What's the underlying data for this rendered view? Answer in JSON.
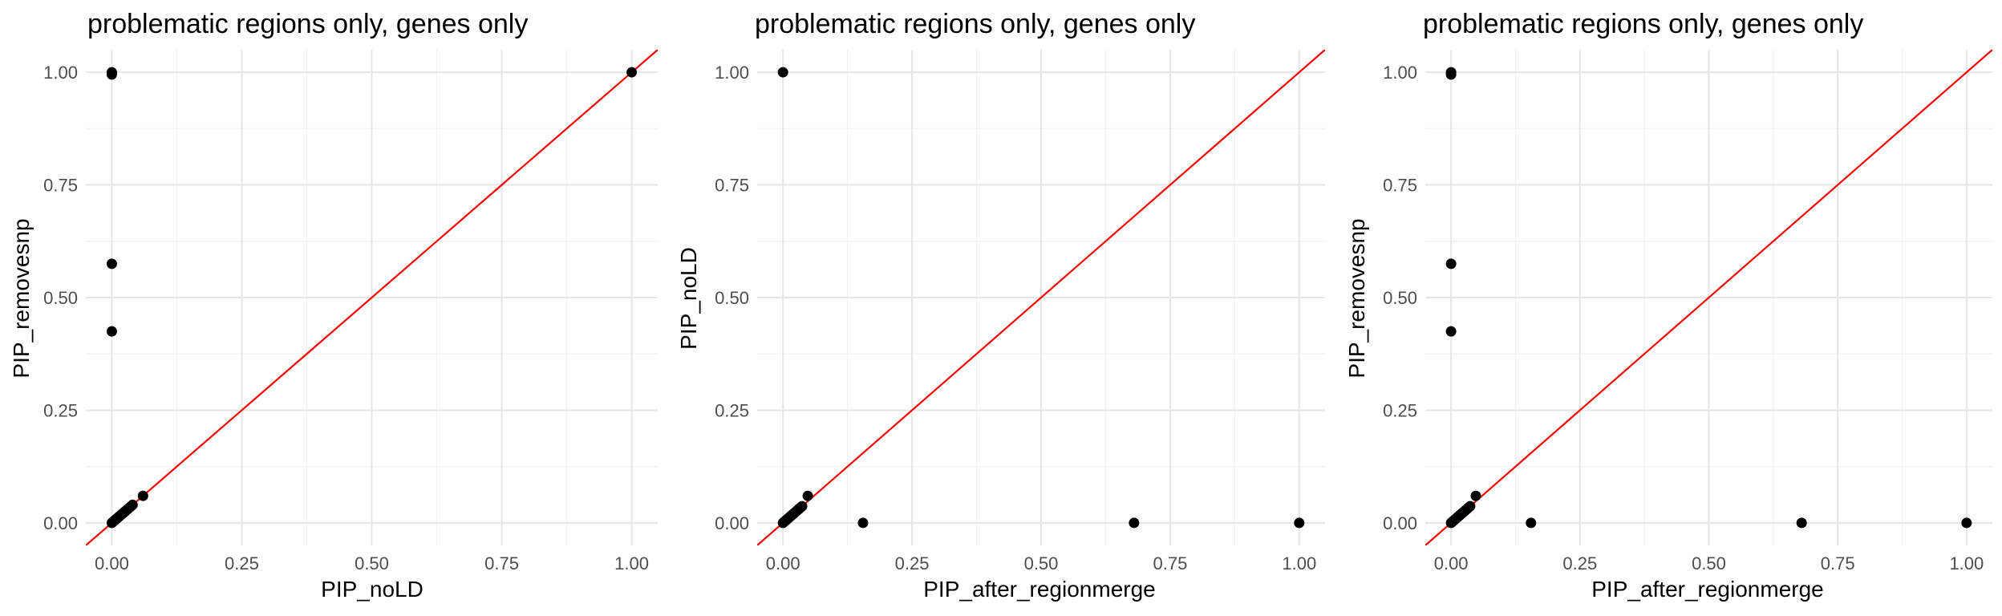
{
  "chart_data": [
    {
      "type": "scatter",
      "title": "problematic regions only, genes only",
      "xlabel": "PIP_noLD",
      "ylabel": "PIP_removesnp",
      "xlim": [
        -0.05,
        1.05
      ],
      "ylim": [
        -0.05,
        1.05
      ],
      "x_ticks": [
        "0.00",
        "0.25",
        "0.50",
        "0.75",
        "1.00"
      ],
      "y_ticks": [
        "0.00",
        "0.25",
        "0.50",
        "0.75",
        "1.00"
      ],
      "reference_line": {
        "slope": 1,
        "intercept": 0,
        "color": "#ff0000"
      },
      "grid": true,
      "points": [
        {
          "x": 0.0,
          "y": 1.0
        },
        {
          "x": 0.0,
          "y": 0.995
        },
        {
          "x": 0.0,
          "y": 0.575
        },
        {
          "x": 0.0,
          "y": 0.425
        },
        {
          "x": 0.0,
          "y": 0.0
        },
        {
          "x": 0.002,
          "y": 0.002
        },
        {
          "x": 0.004,
          "y": 0.004
        },
        {
          "x": 0.006,
          "y": 0.006
        },
        {
          "x": 0.008,
          "y": 0.008
        },
        {
          "x": 0.01,
          "y": 0.01
        },
        {
          "x": 0.012,
          "y": 0.012
        },
        {
          "x": 0.014,
          "y": 0.014
        },
        {
          "x": 0.016,
          "y": 0.016
        },
        {
          "x": 0.018,
          "y": 0.018
        },
        {
          "x": 0.02,
          "y": 0.02
        },
        {
          "x": 0.022,
          "y": 0.022
        },
        {
          "x": 0.025,
          "y": 0.025
        },
        {
          "x": 0.028,
          "y": 0.028
        },
        {
          "x": 0.031,
          "y": 0.031
        },
        {
          "x": 0.034,
          "y": 0.034
        },
        {
          "x": 0.037,
          "y": 0.037
        },
        {
          "x": 0.04,
          "y": 0.04
        },
        {
          "x": 0.06,
          "y": 0.06
        },
        {
          "x": 1.0,
          "y": 1.0
        }
      ]
    },
    {
      "type": "scatter",
      "title": "problematic regions only, genes only",
      "xlabel": "PIP_after_regionmerge",
      "ylabel": "PIP_noLD",
      "xlim": [
        -0.05,
        1.05
      ],
      "ylim": [
        -0.05,
        1.05
      ],
      "x_ticks": [
        "0.00",
        "0.25",
        "0.50",
        "0.75",
        "1.00"
      ],
      "y_ticks": [
        "0.00",
        "0.25",
        "0.50",
        "0.75",
        "1.00"
      ],
      "reference_line": {
        "slope": 1,
        "intercept": 0,
        "color": "#ff0000"
      },
      "grid": true,
      "points": [
        {
          "x": 0.0,
          "y": 1.0
        },
        {
          "x": 0.155,
          "y": 0.0
        },
        {
          "x": 0.68,
          "y": 0.0
        },
        {
          "x": 1.0,
          "y": 0.0
        },
        {
          "x": 0.0,
          "y": 0.0
        },
        {
          "x": 0.002,
          "y": 0.002
        },
        {
          "x": 0.004,
          "y": 0.004
        },
        {
          "x": 0.006,
          "y": 0.006
        },
        {
          "x": 0.008,
          "y": 0.008
        },
        {
          "x": 0.01,
          "y": 0.01
        },
        {
          "x": 0.012,
          "y": 0.012
        },
        {
          "x": 0.014,
          "y": 0.014
        },
        {
          "x": 0.016,
          "y": 0.016
        },
        {
          "x": 0.018,
          "y": 0.018
        },
        {
          "x": 0.02,
          "y": 0.02
        },
        {
          "x": 0.022,
          "y": 0.022
        },
        {
          "x": 0.025,
          "y": 0.025
        },
        {
          "x": 0.028,
          "y": 0.028
        },
        {
          "x": 0.031,
          "y": 0.031
        },
        {
          "x": 0.034,
          "y": 0.034
        },
        {
          "x": 0.037,
          "y": 0.037
        },
        {
          "x": 0.048,
          "y": 0.06
        }
      ]
    },
    {
      "type": "scatter",
      "title": "problematic regions only, genes only",
      "xlabel": "PIP_after_regionmerge",
      "ylabel": "PIP_removesnp",
      "xlim": [
        -0.05,
        1.05
      ],
      "ylim": [
        -0.05,
        1.05
      ],
      "x_ticks": [
        "0.00",
        "0.25",
        "0.50",
        "0.75",
        "1.00"
      ],
      "y_ticks": [
        "0.00",
        "0.25",
        "0.50",
        "0.75",
        "1.00"
      ],
      "reference_line": {
        "slope": 1,
        "intercept": 0,
        "color": "#ff0000"
      },
      "grid": true,
      "points": [
        {
          "x": 0.0,
          "y": 1.0
        },
        {
          "x": 0.0,
          "y": 0.995
        },
        {
          "x": 0.0,
          "y": 0.575
        },
        {
          "x": 0.0,
          "y": 0.425
        },
        {
          "x": 0.155,
          "y": 0.0
        },
        {
          "x": 0.68,
          "y": 0.0
        },
        {
          "x": 1.0,
          "y": 0.0
        },
        {
          "x": 0.0,
          "y": 0.0
        },
        {
          "x": 0.002,
          "y": 0.002
        },
        {
          "x": 0.004,
          "y": 0.004
        },
        {
          "x": 0.006,
          "y": 0.006
        },
        {
          "x": 0.008,
          "y": 0.008
        },
        {
          "x": 0.01,
          "y": 0.01
        },
        {
          "x": 0.012,
          "y": 0.012
        },
        {
          "x": 0.014,
          "y": 0.014
        },
        {
          "x": 0.016,
          "y": 0.016
        },
        {
          "x": 0.018,
          "y": 0.018
        },
        {
          "x": 0.02,
          "y": 0.02
        },
        {
          "x": 0.022,
          "y": 0.022
        },
        {
          "x": 0.025,
          "y": 0.025
        },
        {
          "x": 0.028,
          "y": 0.028
        },
        {
          "x": 0.031,
          "y": 0.031
        },
        {
          "x": 0.034,
          "y": 0.034
        },
        {
          "x": 0.037,
          "y": 0.037
        },
        {
          "x": 0.048,
          "y": 0.06
        }
      ]
    }
  ]
}
